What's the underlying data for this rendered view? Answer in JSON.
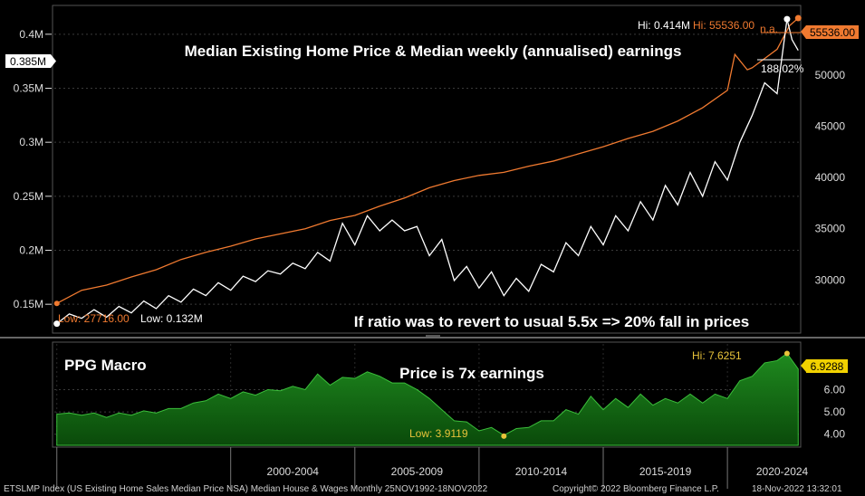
{
  "chart_data": [
    {
      "type": "line",
      "title": "Median Existing Home Price & Median weekly (annualised) earnings",
      "annotation": "If ratio was to revert to usual 5.5x => 20% fall in prices",
      "x_range": [
        "1992-11",
        "2022-11"
      ],
      "y_left": {
        "ticks": [
          "0.15M",
          "0.2M",
          "0.25M",
          "0.3M",
          "0.35M",
          "0.4M"
        ],
        "range": [
          0.125,
          0.425
        ]
      },
      "y_right": {
        "ticks": [
          "30000",
          "35000",
          "40000",
          "45000",
          "50000"
        ],
        "range": [
          25000,
          56600
        ]
      },
      "last_value_left": "0.385M",
      "last_value_right": "55536.00",
      "high_price_label": "Hi: 0.414M",
      "high_earnings_label": "Hi: 55536.00",
      "high_earnings_na": "n.a.",
      "pct_label": "188.02%",
      "low_earnings_label": "Low: 27716.00",
      "low_price_label": "Low: 0.132M",
      "series": [
        {
          "color": "#ffffff",
          "axis": "left",
          "x": [
            1993.0,
            1993.5,
            1994.0,
            1994.5,
            1995.0,
            1995.5,
            1996.0,
            1996.5,
            1997.0,
            1997.5,
            1998.0,
            1998.5,
            1999.0,
            1999.5,
            2000.0,
            2000.5,
            2001.0,
            2001.5,
            2002.0,
            2002.5,
            2003.0,
            2003.5,
            2004.0,
            2004.5,
            2005.0,
            2005.5,
            2006.0,
            2006.5,
            2007.0,
            2007.5,
            2008.0,
            2008.5,
            2009.0,
            2009.5,
            2010.0,
            2010.5,
            2011.0,
            2011.5,
            2012.0,
            2012.5,
            2013.0,
            2013.5,
            2014.0,
            2014.5,
            2015.0,
            2015.5,
            2016.0,
            2016.5,
            2017.0,
            2017.5,
            2018.0,
            2018.5,
            2019.0,
            2019.5,
            2020.0,
            2020.5,
            2021.0,
            2021.5,
            2022.0,
            2022.4,
            2022.6,
            2022.85
          ],
          "y": [
            0.132,
            0.141,
            0.137,
            0.145,
            0.138,
            0.148,
            0.142,
            0.153,
            0.146,
            0.158,
            0.152,
            0.164,
            0.158,
            0.17,
            0.163,
            0.176,
            0.171,
            0.181,
            0.178,
            0.188,
            0.183,
            0.198,
            0.19,
            0.225,
            0.205,
            0.232,
            0.218,
            0.228,
            0.218,
            0.222,
            0.195,
            0.21,
            0.172,
            0.185,
            0.165,
            0.18,
            0.158,
            0.174,
            0.162,
            0.187,
            0.18,
            0.207,
            0.195,
            0.222,
            0.205,
            0.232,
            0.218,
            0.245,
            0.228,
            0.26,
            0.242,
            0.272,
            0.25,
            0.282,
            0.265,
            0.3,
            0.325,
            0.355,
            0.345,
            0.414,
            0.395,
            0.385
          ]
        },
        {
          "color": "#f07a30",
          "axis": "right",
          "x": [
            1993.0,
            1994,
            1995,
            1996,
            1997,
            1998,
            1999,
            2000,
            2001,
            2002,
            2003,
            2004,
            2005,
            2006,
            2007,
            2008,
            2009,
            2010,
            2011,
            2012,
            2013,
            2014,
            2015,
            2016,
            2017,
            2018,
            2019,
            2020.0,
            2020.3,
            2020.8,
            2021,
            2022,
            2022.5,
            2022.85
          ],
          "y": [
            27716,
            29000,
            29500,
            30300,
            31000,
            32000,
            32700,
            33300,
            34000,
            34500,
            35000,
            35800,
            36300,
            37200,
            38000,
            39000,
            39700,
            40200,
            40500,
            41100,
            41600,
            42300,
            43000,
            43800,
            44500,
            45500,
            46800,
            48500,
            52000,
            50500,
            50700,
            52500,
            54800,
            55536
          ]
        }
      ]
    },
    {
      "type": "area",
      "label": "PPG Macro",
      "annotation": "Price is 7x earnings",
      "y_ticks": [
        "4.00",
        "5.00",
        "6.00"
      ],
      "y_range": [
        3.5,
        8.05
      ],
      "last_value": "6.9288",
      "high_label": "Hi: 7.6251",
      "low_label": "Low: 3.9119",
      "x": [
        1993.0,
        1993.5,
        1994,
        1994.5,
        1995,
        1995.5,
        1996,
        1996.5,
        1997,
        1997.5,
        1998,
        1998.5,
        1999,
        1999.5,
        2000,
        2000.5,
        2001,
        2001.5,
        2002,
        2002.5,
        2003,
        2003.5,
        2004,
        2004.5,
        2005,
        2005.5,
        2006,
        2006.5,
        2007,
        2007.5,
        2008,
        2008.5,
        2009,
        2009.5,
        2010,
        2010.5,
        2011,
        2011.5,
        2012,
        2012.5,
        2013,
        2013.5,
        2014,
        2014.5,
        2015,
        2015.5,
        2016,
        2016.5,
        2017,
        2017.5,
        2018,
        2018.5,
        2019,
        2019.5,
        2020,
        2020.5,
        2021,
        2021.5,
        2022,
        2022.4,
        2022.85
      ],
      "y": [
        4.9,
        4.95,
        4.85,
        4.95,
        4.75,
        4.95,
        4.85,
        5.05,
        4.95,
        5.15,
        5.15,
        5.4,
        5.5,
        5.8,
        5.6,
        5.9,
        5.75,
        6.0,
        5.95,
        6.15,
        6.0,
        6.7,
        6.2,
        6.55,
        6.5,
        6.8,
        6.6,
        6.3,
        6.3,
        6.0,
        5.6,
        5.1,
        4.6,
        4.55,
        4.15,
        4.3,
        3.95,
        4.25,
        4.3,
        4.6,
        4.6,
        5.1,
        4.9,
        5.7,
        5.1,
        5.6,
        5.2,
        5.8,
        5.3,
        5.6,
        5.4,
        5.8,
        5.4,
        5.8,
        5.6,
        6.4,
        6.6,
        7.2,
        7.3,
        7.6251,
        6.9288
      ]
    }
  ],
  "x_axis": {
    "period_labels": [
      "2000-2004",
      "2005-2009",
      "2010-2014",
      "2015-2019",
      "2020-2024"
    ]
  },
  "footer": {
    "left": "ETSLMP Index (US Existing Home Sales Median Price NSA) Median House & Wages  Monthly 25NOV1992-18NOV2022",
    "copyright": "Copyright© 2022 Bloomberg Finance L.P.",
    "timestamp": "18-Nov-2022 13:32:01"
  }
}
